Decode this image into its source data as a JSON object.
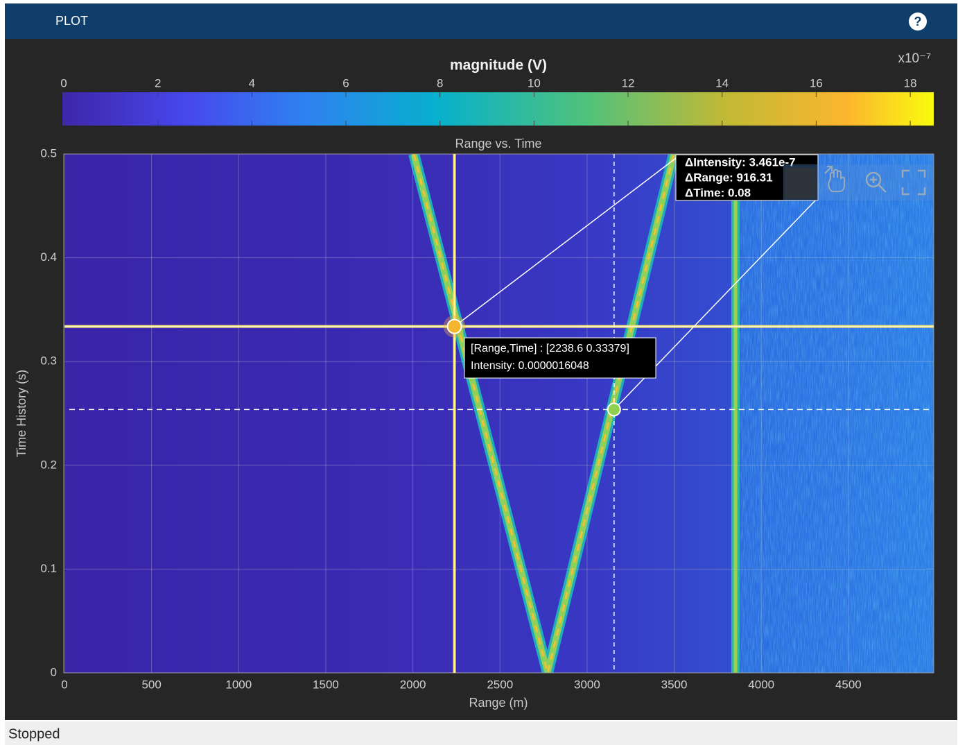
{
  "header": {
    "title": "PLOT",
    "help": "?"
  },
  "colorbar": {
    "title": "magnitude (V)",
    "exponent": "x10⁻⁷",
    "lim": [
      0,
      18.5
    ],
    "ticks": [
      0,
      2,
      4,
      6,
      8,
      10,
      12,
      14,
      16,
      18
    ]
  },
  "plot": {
    "title": "Range vs. Time",
    "xlabel": "Range (m)",
    "ylabel": "Time History (s)",
    "xlim": [
      0,
      4990
    ],
    "ylim": [
      0,
      0.5
    ],
    "xticks": [
      0,
      500,
      1000,
      1500,
      2000,
      2500,
      3000,
      3500,
      4000,
      4500
    ],
    "yticks": [
      0,
      0.1,
      0.2,
      0.3,
      0.4,
      0.5
    ],
    "grid": true
  },
  "datatip": {
    "lines": [
      "[Range,Time] : [2238.6 0.33379]",
      "Intensity: 0.0000016048"
    ],
    "range": 2238.6,
    "time": 0.33379
  },
  "delta_tip": {
    "lines": [
      "ΔIntensity: 3.461e-7",
      "ΔRange: 916.31",
      "ΔTime: 0.08"
    ],
    "range": 916.31,
    "time": 0.08
  },
  "status": "Stopped"
}
